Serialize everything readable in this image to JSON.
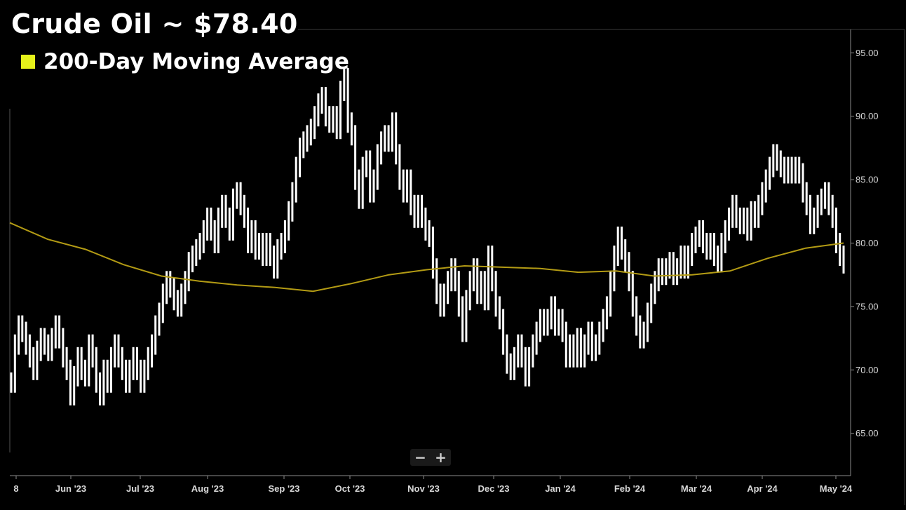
{
  "header": {
    "title": "Crude Oil ~ $78.40",
    "legend_label": "200-Day Moving Average",
    "legend_color": "#e6f21a"
  },
  "zoom": {
    "minus": "−",
    "plus": "+"
  },
  "chart_data": {
    "type": "line",
    "title": "Crude Oil ~ $78.40",
    "ylim": [
      62.5,
      97.5
    ],
    "y_ticks": [
      "95.00",
      "90.00",
      "85.00",
      "80.00",
      "75.00",
      "70.00",
      "65.00"
    ],
    "x_ticks": [
      "8",
      "Jun '23",
      "Jul '23",
      "Aug '23",
      "Sep '23",
      "Oct '23",
      "Nov '23",
      "Dec '23",
      "Jan '24",
      "Feb '24",
      "Mar '24",
      "Apr '24",
      "May '24"
    ],
    "price_color": "#ffffff",
    "ma_color": "#b39b14",
    "series": [
      {
        "name": "",
        "style": "OHLC bars",
        "values": [
          69,
          72,
          73.5,
          73,
          72,
          71,
          70,
          71.5,
          72.5,
          72,
          71.5,
          72.5,
          73.5,
          72.5,
          71,
          70,
          68,
          69.5,
          71,
          70,
          69.5,
          72,
          71,
          69,
          68,
          70,
          69,
          71,
          72,
          71,
          70,
          69,
          70,
          71,
          70,
          69,
          70,
          71,
          72,
          73.5,
          74.5,
          76,
          77,
          76.5,
          75.5,
          75,
          76,
          77,
          78.5,
          79,
          79.5,
          80,
          81,
          82,
          81,
          80,
          82,
          83,
          82,
          81,
          83.5,
          84,
          83,
          82,
          80,
          81,
          79.5,
          80,
          79,
          80,
          79,
          78,
          79.5,
          80,
          81,
          82.5,
          84,
          86,
          87.5,
          88,
          88.5,
          89,
          90,
          91,
          91.5,
          90,
          89.5,
          90,
          89,
          92,
          93,
          89.5,
          88.5,
          85,
          83.5,
          86,
          86.5,
          84,
          85,
          87,
          88,
          88.5,
          88,
          89.5,
          87,
          85,
          84,
          85,
          83,
          82,
          83,
          82,
          81,
          80.5,
          78,
          76,
          75,
          76,
          77,
          78,
          77,
          75,
          73,
          75.5,
          77,
          78,
          76,
          77,
          75.5,
          79,
          77,
          75,
          74,
          72,
          70.5,
          70,
          71,
          72,
          71,
          69.5,
          71,
          72,
          73,
          74,
          73.5,
          74,
          75,
          73.5,
          74,
          73,
          71,
          72,
          71,
          72.5,
          71,
          72,
          73,
          71.5,
          72,
          73,
          74,
          75,
          77,
          79,
          80.5,
          79.5,
          78.5,
          77,
          75,
          73.5,
          72.5,
          73,
          74.5,
          76,
          77,
          78,
          77.5,
          78,
          78.5,
          77.5,
          78,
          79,
          78,
          79,
          80,
          80.5,
          81,
          80,
          79.5,
          80,
          79,
          78.5,
          80,
          81,
          82,
          83,
          82,
          81.5,
          82,
          81,
          82.5,
          82,
          83,
          84,
          85,
          86,
          87,
          86.5,
          86,
          85.5,
          86,
          85.5,
          86,
          85.5,
          84,
          83,
          81.5,
          82,
          83,
          83.5,
          84,
          83,
          82,
          80,
          79,
          78.4
        ]
      },
      {
        "name": "200-Day Moving Average",
        "values": [
          81.6,
          80.3,
          79.5,
          78.3,
          77.4,
          77,
          76.7,
          76.5,
          76.2,
          76.8,
          77.5,
          77.9,
          78.2,
          78.1,
          78,
          77.7,
          77.8,
          77.4,
          77.5,
          77.8,
          78.8,
          79.6,
          80
        ]
      }
    ]
  }
}
